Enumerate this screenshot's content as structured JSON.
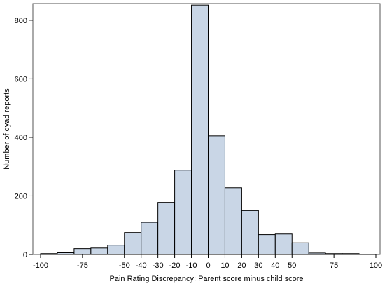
{
  "chart_data": {
    "type": "bar",
    "title": "",
    "xlabel": "Pain Rating Discrepancy: Parent score minus child score",
    "ylabel": "Number of dyad reports",
    "xlim": [
      -100,
      100
    ],
    "ylim": [
      0,
      850
    ],
    "x_ticks": [
      -100,
      -75,
      -50,
      -40,
      -30,
      -20,
      -10,
      0,
      10,
      20,
      30,
      40,
      50,
      75,
      100
    ],
    "y_ticks": [
      0,
      200,
      400,
      600,
      800
    ],
    "bin_width": 10,
    "bins": [
      {
        "center": -95,
        "count": 3
      },
      {
        "center": -85,
        "count": 6
      },
      {
        "center": -75,
        "count": 20
      },
      {
        "center": -65,
        "count": 22
      },
      {
        "center": -55,
        "count": 32
      },
      {
        "center": -45,
        "count": 75
      },
      {
        "center": -35,
        "count": 110
      },
      {
        "center": -25,
        "count": 178
      },
      {
        "center": -15,
        "count": 288
      },
      {
        "center": -5,
        "count": 852
      },
      {
        "center": 5,
        "count": 405
      },
      {
        "center": 15,
        "count": 228
      },
      {
        "center": 25,
        "count": 150
      },
      {
        "center": 35,
        "count": 68
      },
      {
        "center": 45,
        "count": 70
      },
      {
        "center": 55,
        "count": 40
      },
      {
        "center": 65,
        "count": 5
      },
      {
        "center": 75,
        "count": 3
      },
      {
        "center": 85,
        "count": 3
      },
      {
        "center": 95,
        "count": 1
      }
    ],
    "grid": false,
    "colors": {
      "bar_fill": "#c9d6e6",
      "bar_stroke": "#000000",
      "frame": "#555555"
    }
  }
}
